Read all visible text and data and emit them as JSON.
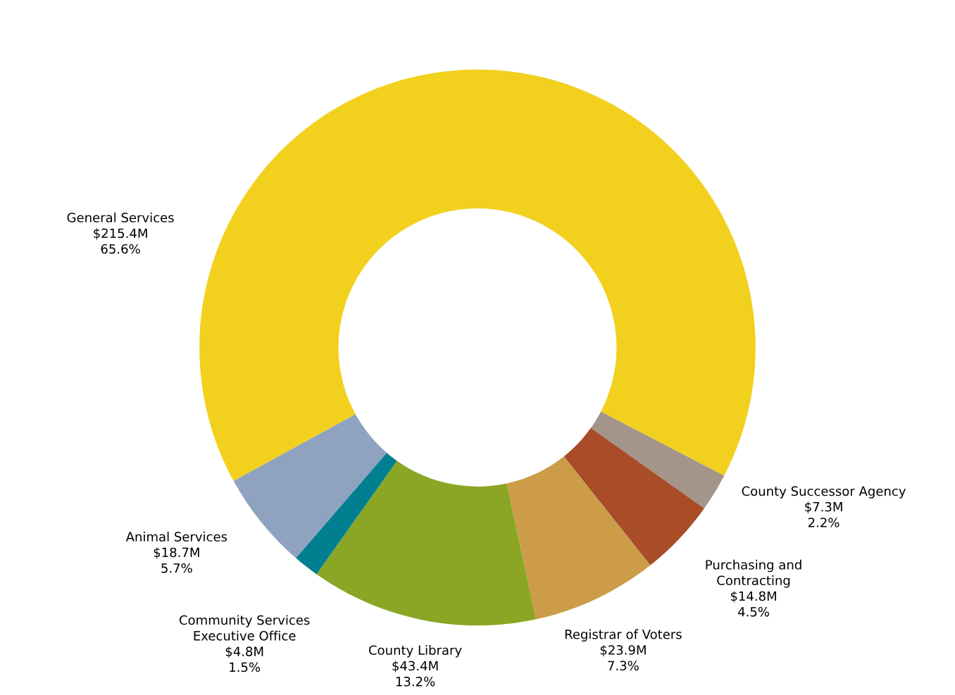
{
  "chart_data": {
    "type": "donut",
    "categories": [
      "General Services\n$215.4M",
      "County Successor Agency\n$7.3M",
      "Purchasing and\nContracting\n$14.8M",
      "Registrar of Voters\n$23.9M",
      "County Library\n$43.4M",
      "Community Services\nExecutive Office\n$4.8M",
      "Animal Services\n$18.7M"
    ],
    "values": [
      65.6,
      2.2,
      4.5,
      7.3,
      13.2,
      1.5,
      5.7
    ],
    "value_labels": [
      "65.6%",
      "2.2%",
      "4.5%",
      "7.3%",
      "13.2%",
      "1.5%",
      "5.7%"
    ],
    "colors": [
      "#f2d01e",
      "#a39589",
      "#a94c28",
      "#cc9c48",
      "#8aa624",
      "#007f91",
      "#8fa2c0"
    ],
    "legend": false
  }
}
